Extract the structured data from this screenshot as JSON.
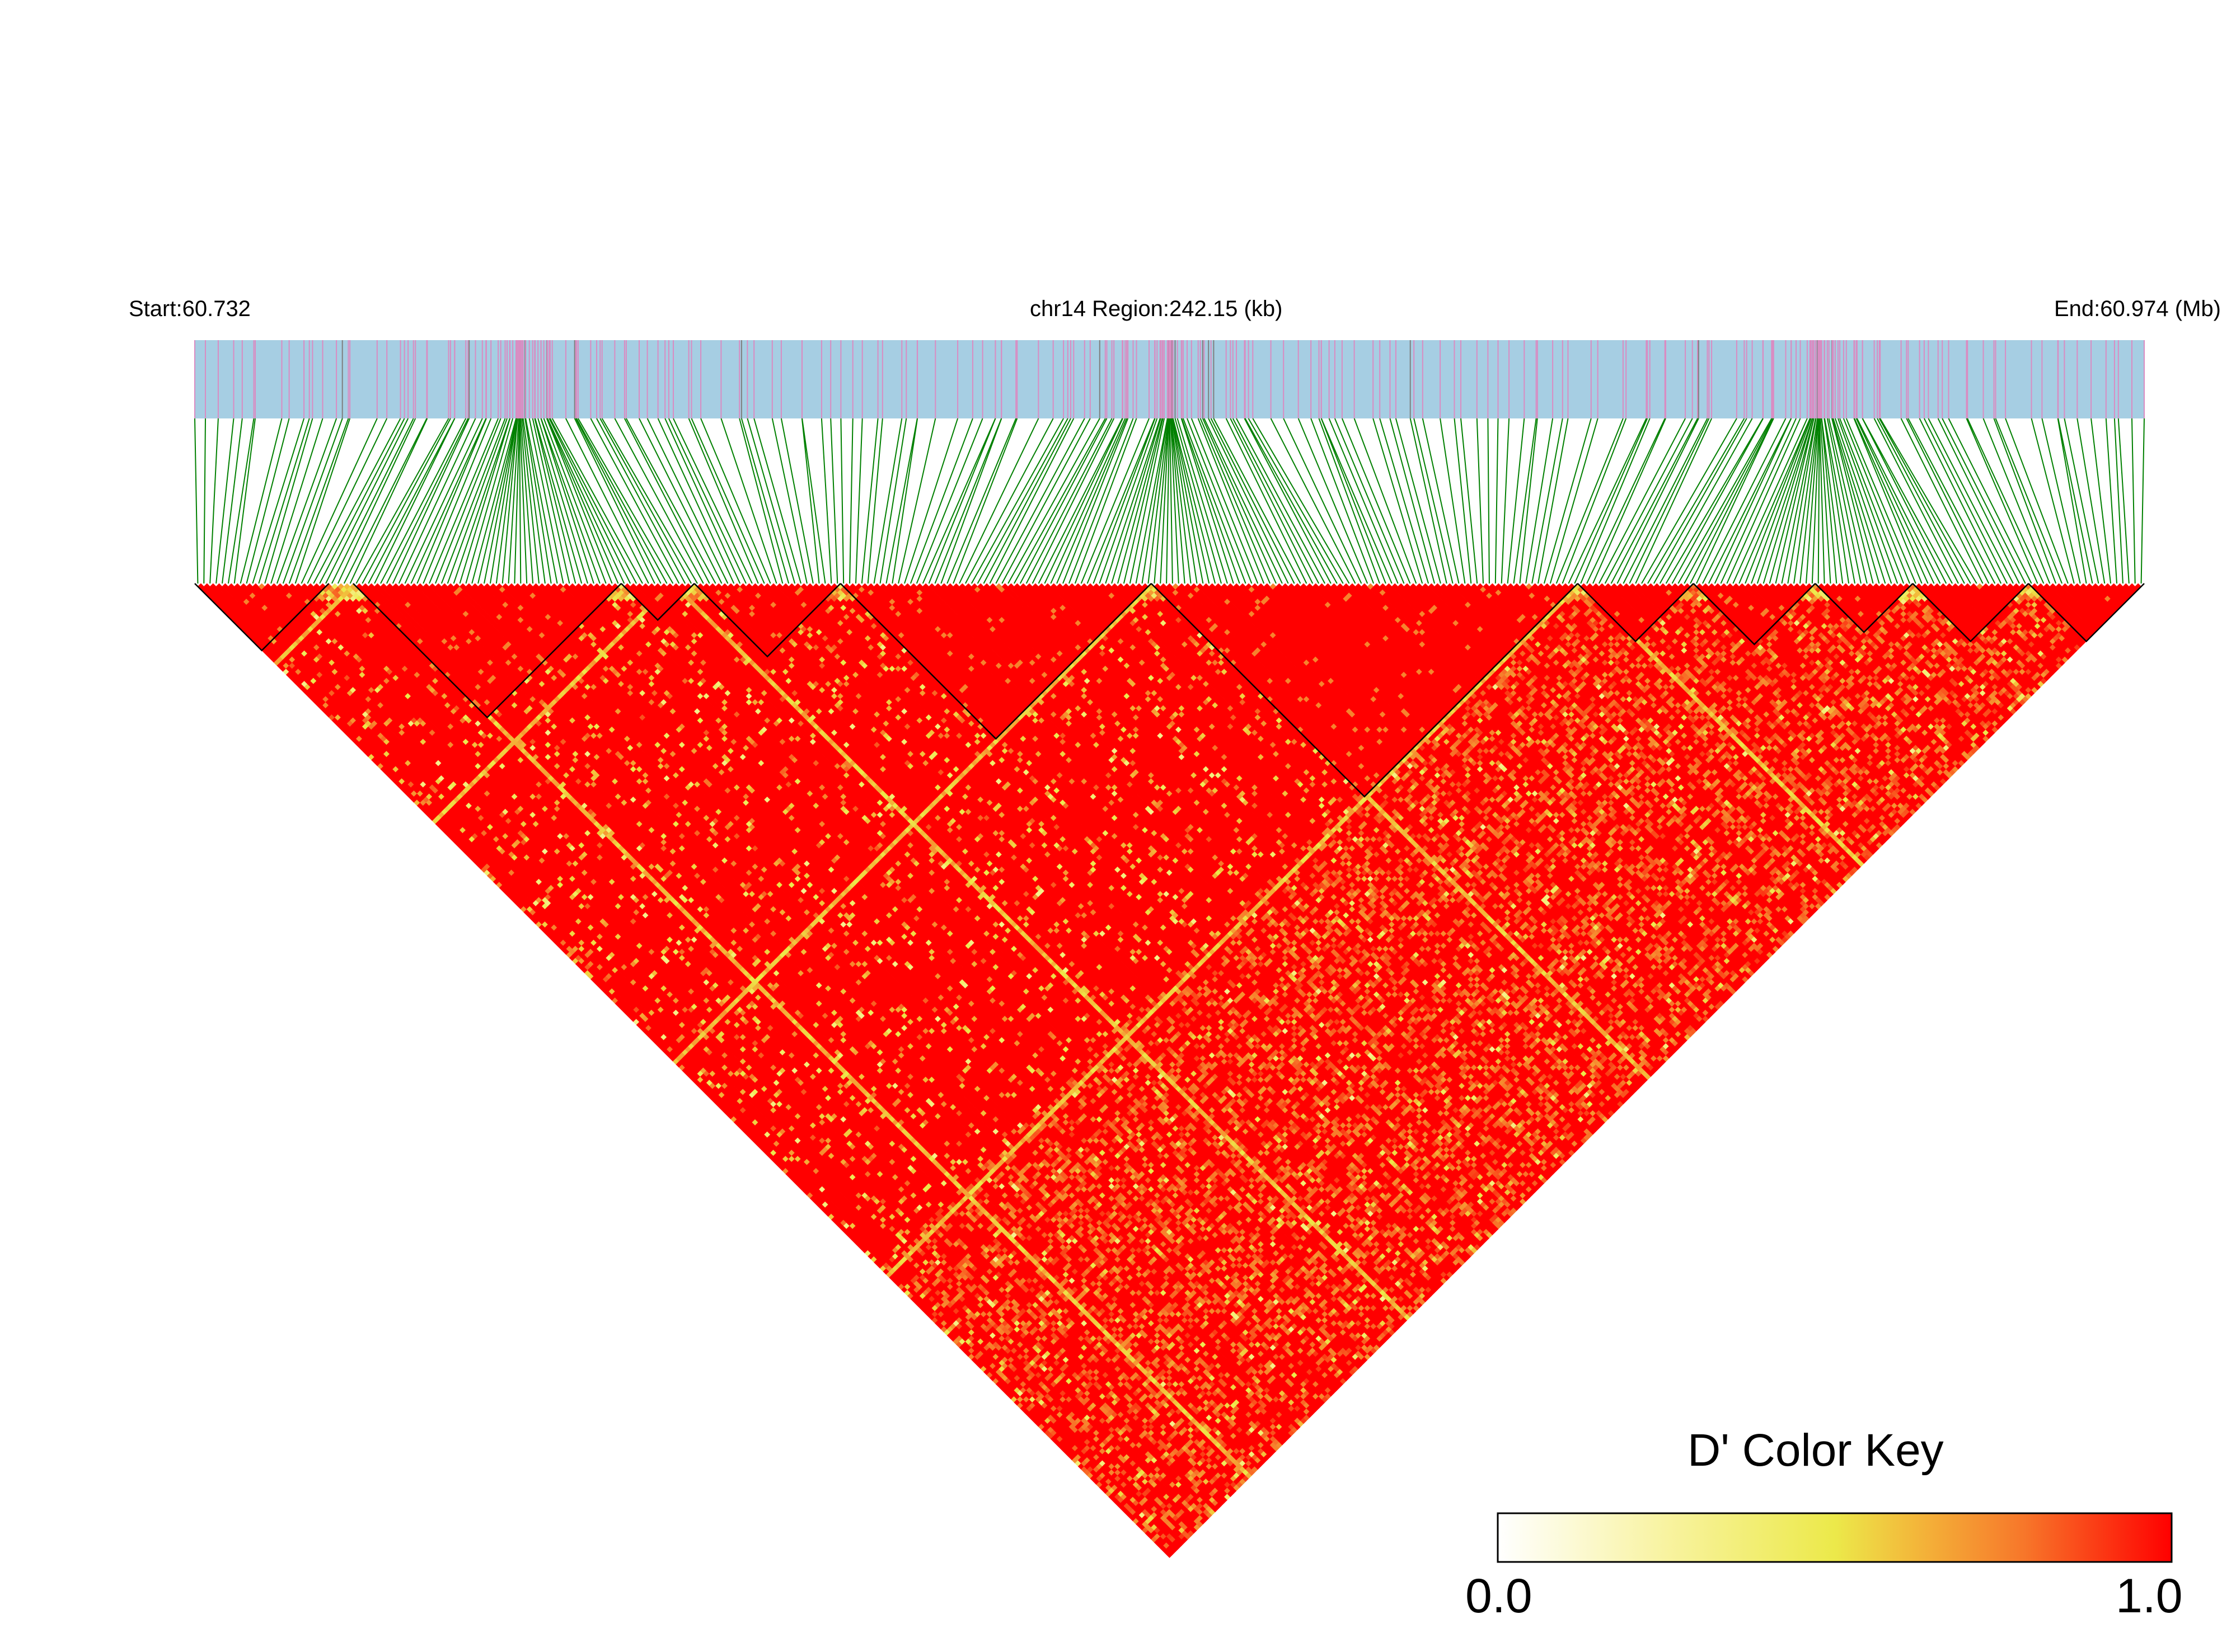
{
  "chart_data": {
    "type": "heatmap",
    "subtype": "linkage-disequilibrium-triangle",
    "header": {
      "start_label": "Start:60.732",
      "region_label": "chr14 Region:242.15 (kb)",
      "end_label": "End:60.974 (Mb)"
    },
    "region": {
      "chromosome": "chr14",
      "start_mb": 60.732,
      "end_mb": 60.974,
      "length_kb": 242.15
    },
    "metric": "D'",
    "color_key": {
      "title": "D' Color Key",
      "min_label": "0.0",
      "max_label": "1.0",
      "min": 0.0,
      "max": 1.0,
      "stops": [
        "#ffffff",
        "#ffffe0",
        "#f5f07a",
        "#ece94a",
        "#f6b13a",
        "#f77b2a",
        "#fb3d14",
        "#ff0000"
      ]
    },
    "colors": {
      "track_background": "#a6cee3",
      "track_marker_pink": "#d98cc2",
      "track_marker_gray": "#7f7f7f",
      "connector_lines": "#008000",
      "block_outline": "#000000"
    },
    "snp_count": 320,
    "dominant_value": 1.0,
    "haplotype_blocks_fraction": [
      [
        0.0,
        0.07
      ],
      [
        0.08,
        0.22
      ],
      [
        0.22,
        0.255
      ],
      [
        0.255,
        0.33
      ],
      [
        0.33,
        0.49
      ],
      [
        0.49,
        0.71
      ],
      [
        0.71,
        0.77
      ],
      [
        0.77,
        0.83
      ],
      [
        0.83,
        0.88
      ],
      [
        0.88,
        0.94
      ],
      [
        0.94,
        1.0
      ]
    ]
  }
}
